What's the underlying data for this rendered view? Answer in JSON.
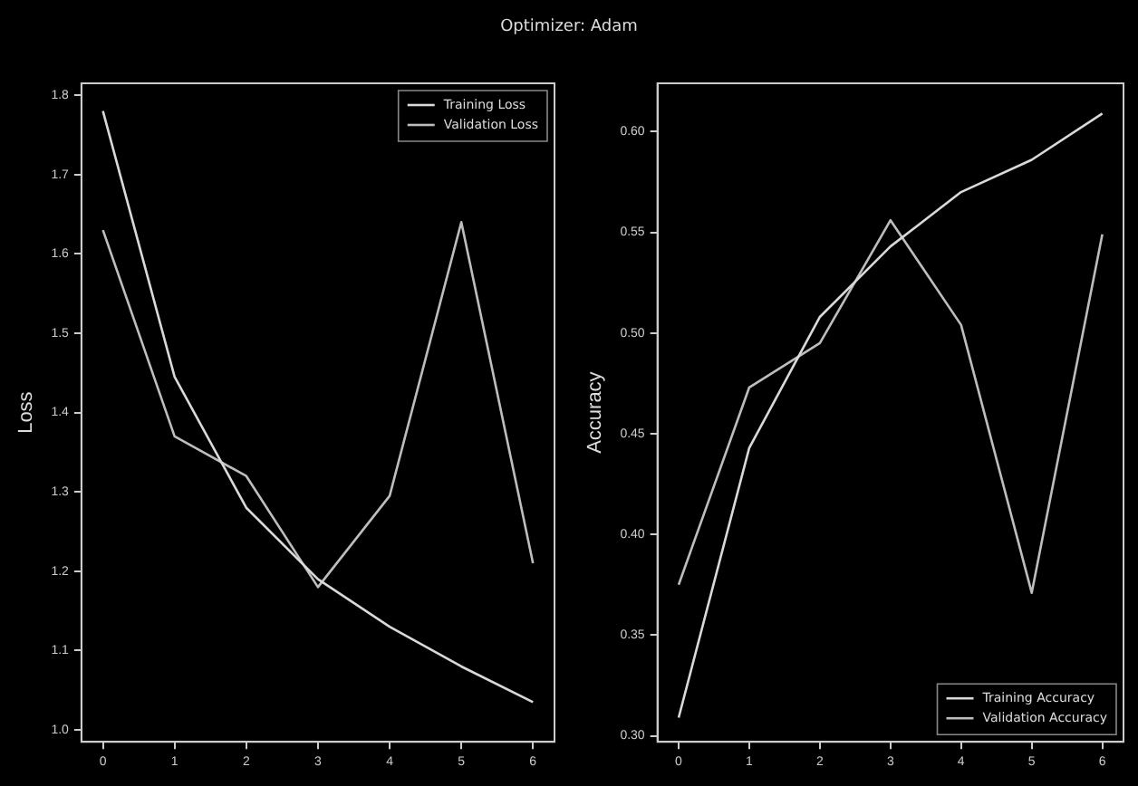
{
  "chart_data": [
    {
      "type": "line",
      "title": "Optimizer: Adam",
      "ylabel": "Loss",
      "x": [
        0,
        1,
        2,
        3,
        4,
        5,
        6
      ],
      "xlim": [
        -0.3,
        6.3
      ],
      "xticks": [
        0,
        1,
        2,
        3,
        4,
        5,
        6
      ],
      "ylim": [
        0.985,
        1.815
      ],
      "yticks": [
        {
          "value": 1.0,
          "label": "1.0"
        },
        1.1,
        1.2,
        1.3,
        1.4,
        1.5,
        1.6,
        1.7,
        1.8
      ],
      "grid": false,
      "legend": "top right",
      "marker": "none",
      "line_style": "solid",
      "series": [
        {
          "name": "Training Loss",
          "color": "#d9d9d9",
          "values": [
            1.78,
            1.445,
            1.28,
            1.19,
            1.13,
            1.08,
            1.035
          ]
        },
        {
          "name": "Validation Loss",
          "color": "#bdbdbd",
          "values": [
            1.63,
            1.37,
            1.32,
            1.18,
            1.295,
            1.64,
            1.21
          ]
        }
      ]
    },
    {
      "type": "line",
      "ylabel": "Accuracy",
      "x": [
        0,
        1,
        2,
        3,
        4,
        5,
        6
      ],
      "xlim": [
        -0.3,
        6.3
      ],
      "xticks": [
        0,
        1,
        2,
        3,
        4,
        5,
        6
      ],
      "ylim": [
        0.297,
        0.624
      ],
      "yticks": [
        {
          "value": 0.3,
          "label": "0.30"
        },
        {
          "value": 0.35,
          "label": "0.35"
        },
        {
          "value": 0.4,
          "label": "0.40"
        },
        {
          "value": 0.45,
          "label": "0.45"
        },
        {
          "value": 0.5,
          "label": "0.50"
        },
        {
          "value": 0.55,
          "label": "0.55"
        },
        {
          "value": 0.6,
          "label": "0.60"
        }
      ],
      "grid": false,
      "legend": "bottom right",
      "marker": "none",
      "line_style": "solid",
      "series": [
        {
          "name": "Training Accuracy",
          "color": "#d9d9d9",
          "values": [
            0.309,
            0.443,
            0.508,
            0.543,
            0.57,
            0.586,
            0.609
          ]
        },
        {
          "name": "Validation Accuracy",
          "color": "#bdbdbd",
          "values": [
            0.375,
            0.473,
            0.495,
            0.556,
            0.504,
            0.371,
            0.549
          ]
        }
      ]
    }
  ]
}
